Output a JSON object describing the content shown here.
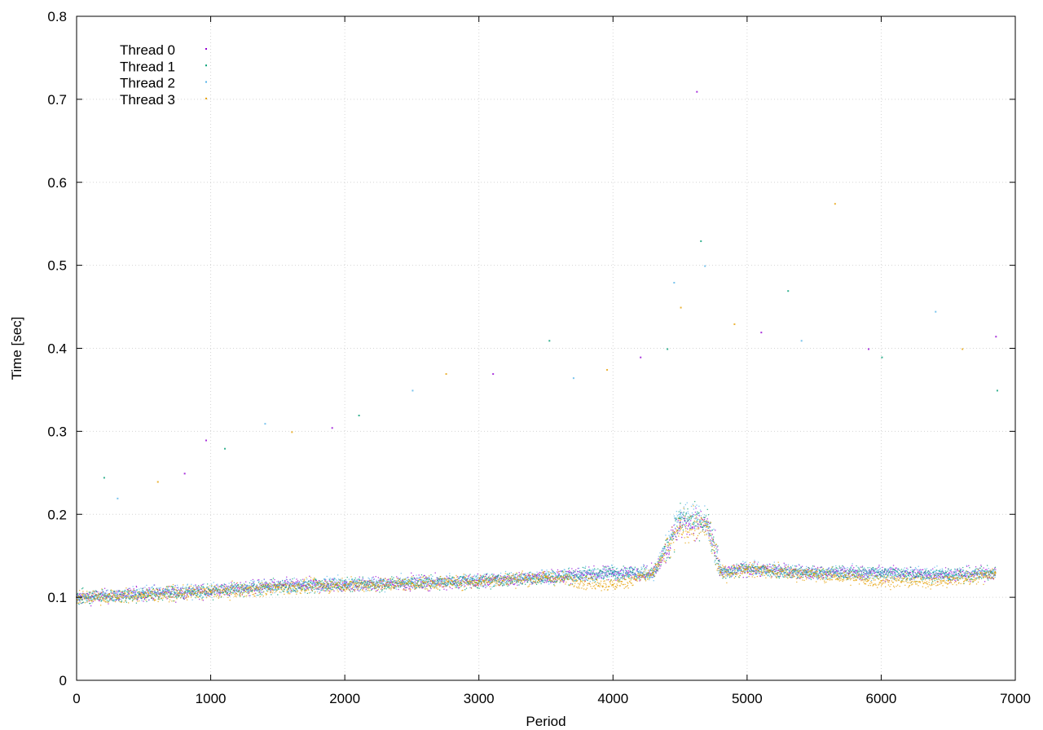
{
  "chart_data": {
    "type": "scatter",
    "title": "",
    "xlabel": "Period",
    "ylabel": "Time [sec]",
    "xlim": [
      0,
      7000
    ],
    "ylim": [
      0,
      0.8
    ],
    "x_ticks": [
      0,
      1000,
      2000,
      3000,
      4000,
      5000,
      6000,
      7000
    ],
    "y_ticks": [
      0,
      0.1,
      0.2,
      0.3,
      0.4,
      0.5,
      0.6,
      0.7,
      0.8
    ],
    "x_tick_labels": [
      "0",
      "1000",
      "2000",
      "3000",
      "4000",
      "5000",
      "6000",
      "7000"
    ],
    "y_tick_labels": [
      "0",
      "0.1",
      "0.2",
      "0.3",
      "0.4",
      "0.5",
      "0.6",
      "0.7",
      "0.8"
    ],
    "grid": true,
    "legend_position": "top-left",
    "series": [
      {
        "name": "Thread 0",
        "color": "#9400d3",
        "marker": "dot",
        "points": [
          [
            0,
            0.1
          ],
          [
            500,
            0.105
          ],
          [
            1000,
            0.108
          ],
          [
            1500,
            0.115
          ],
          [
            2000,
            0.115
          ],
          [
            2500,
            0.118
          ],
          [
            3000,
            0.12
          ],
          [
            3500,
            0.125
          ],
          [
            4000,
            0.13
          ],
          [
            4300,
            0.13
          ],
          [
            4500,
            0.19
          ],
          [
            4700,
            0.19
          ],
          [
            4800,
            0.13
          ],
          [
            5000,
            0.135
          ],
          [
            5500,
            0.13
          ],
          [
            6000,
            0.13
          ],
          [
            6500,
            0.128
          ],
          [
            6850,
            0.13
          ]
        ]
      },
      {
        "name": "Thread 1",
        "color": "#009e73",
        "marker": "x",
        "points": [
          [
            0,
            0.1
          ],
          [
            500,
            0.104
          ],
          [
            1000,
            0.108
          ],
          [
            1500,
            0.113
          ],
          [
            2000,
            0.116
          ],
          [
            2500,
            0.118
          ],
          [
            3000,
            0.12
          ],
          [
            3500,
            0.124
          ],
          [
            4000,
            0.13
          ],
          [
            4300,
            0.13
          ],
          [
            4500,
            0.195
          ],
          [
            4700,
            0.19
          ],
          [
            4800,
            0.13
          ],
          [
            5000,
            0.135
          ],
          [
            5500,
            0.13
          ],
          [
            6000,
            0.13
          ],
          [
            6500,
            0.127
          ],
          [
            6850,
            0.13
          ]
        ]
      },
      {
        "name": "Thread 2",
        "color": "#56b4e9",
        "marker": "star",
        "points": [
          [
            0,
            0.1
          ],
          [
            500,
            0.106
          ],
          [
            1000,
            0.109
          ],
          [
            1500,
            0.114
          ],
          [
            2000,
            0.117
          ],
          [
            2500,
            0.119
          ],
          [
            3000,
            0.121
          ],
          [
            3500,
            0.126
          ],
          [
            4000,
            0.131
          ],
          [
            4300,
            0.13
          ],
          [
            4500,
            0.2
          ],
          [
            4700,
            0.19
          ],
          [
            4800,
            0.13
          ],
          [
            5000,
            0.136
          ],
          [
            5500,
            0.13
          ],
          [
            6000,
            0.13
          ],
          [
            6500,
            0.128
          ],
          [
            6850,
            0.13
          ]
        ]
      },
      {
        "name": "Thread 3",
        "color": "#e69f00",
        "marker": "square",
        "points": [
          [
            0,
            0.1
          ],
          [
            500,
            0.103
          ],
          [
            1000,
            0.107
          ],
          [
            1500,
            0.112
          ],
          [
            2000,
            0.115
          ],
          [
            2500,
            0.117
          ],
          [
            3000,
            0.12
          ],
          [
            3500,
            0.125
          ],
          [
            4000,
            0.115
          ],
          [
            4300,
            0.13
          ],
          [
            4500,
            0.185
          ],
          [
            4700,
            0.185
          ],
          [
            4800,
            0.13
          ],
          [
            5000,
            0.134
          ],
          [
            5500,
            0.128
          ],
          [
            6000,
            0.12
          ],
          [
            6500,
            0.12
          ],
          [
            6850,
            0.13
          ]
        ]
      }
    ],
    "outliers": [
      [
        960,
        0.29
      ],
      [
        1100,
        0.28
      ],
      [
        1400,
        0.31
      ],
      [
        1600,
        0.3
      ],
      [
        1900,
        0.305
      ],
      [
        2100,
        0.32
      ],
      [
        2500,
        0.35
      ],
      [
        2750,
        0.37
      ],
      [
        3100,
        0.37
      ],
      [
        3520,
        0.41
      ],
      [
        3700,
        0.365
      ],
      [
        3950,
        0.375
      ],
      [
        4200,
        0.39
      ],
      [
        4400,
        0.4
      ],
      [
        4450,
        0.48
      ],
      [
        4500,
        0.45
      ],
      [
        4620,
        0.71
      ],
      [
        4650,
        0.53
      ],
      [
        4680,
        0.5
      ],
      [
        4900,
        0.43
      ],
      [
        5100,
        0.42
      ],
      [
        5300,
        0.47
      ],
      [
        5400,
        0.41
      ],
      [
        5650,
        0.575
      ],
      [
        5900,
        0.4
      ],
      [
        6000,
        0.39
      ],
      [
        6400,
        0.445
      ],
      [
        6600,
        0.4
      ],
      [
        6850,
        0.415
      ],
      [
        6860,
        0.35
      ],
      [
        300,
        0.22
      ],
      [
        600,
        0.24
      ],
      [
        800,
        0.25
      ],
      [
        200,
        0.245
      ]
    ]
  }
}
